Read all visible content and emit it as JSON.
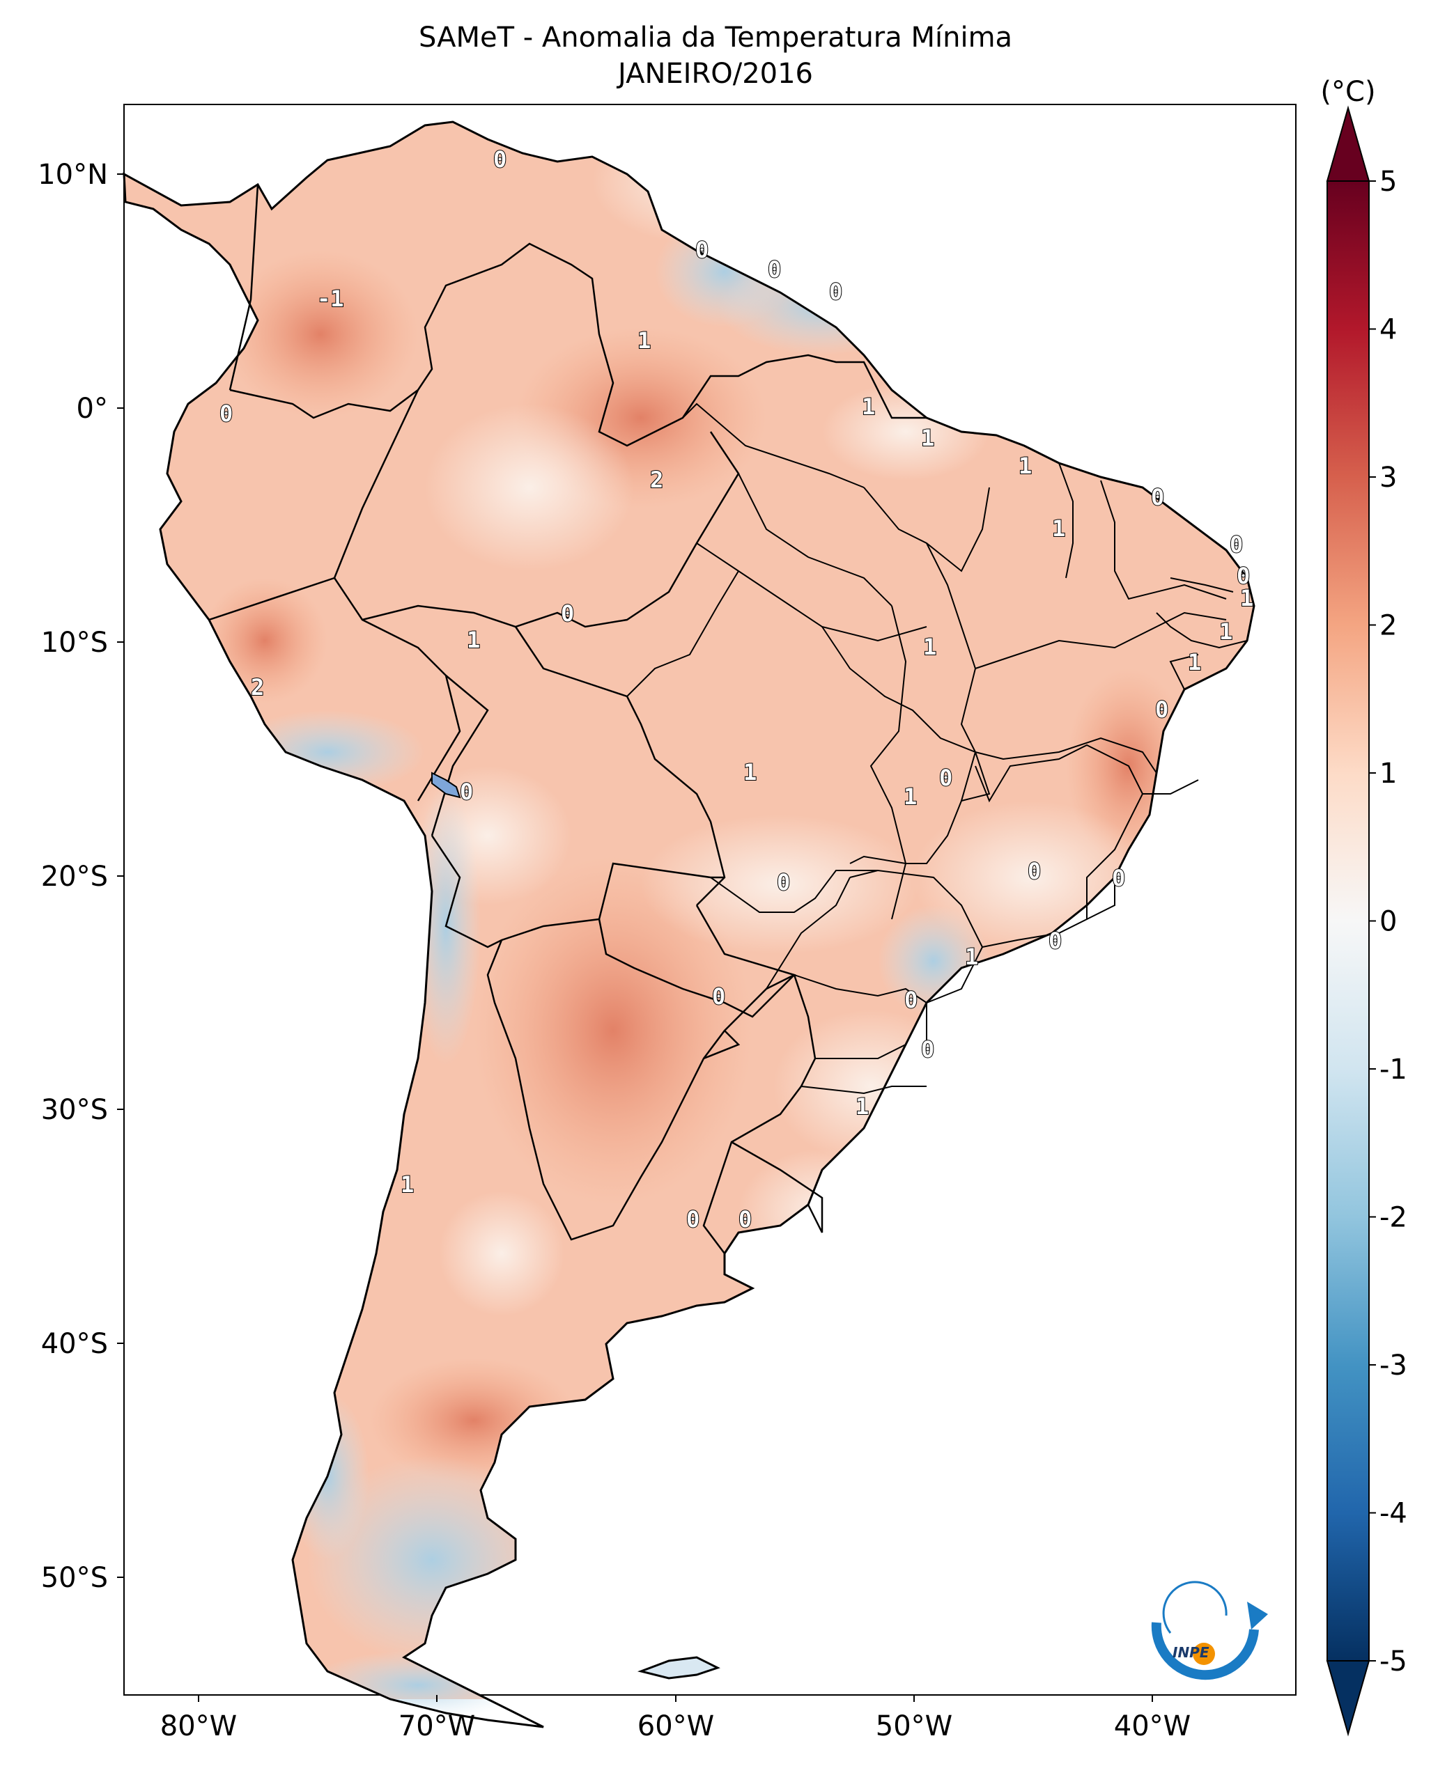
{
  "title": "SAMeT - Anomalia da Temperatura Mínima",
  "subtitle": "JANEIRO/2016",
  "colorbar": {
    "unit": "(°C)",
    "ticks": [
      "5",
      "4",
      "3",
      "2",
      "1",
      "0",
      "-1",
      "-2",
      "-3",
      "-4",
      "-5"
    ],
    "colors": [
      "#67001f",
      "#b2182b",
      "#d6604d",
      "#f4a582",
      "#fddbc7",
      "#f7f7f7",
      "#d1e5f0",
      "#92c5de",
      "#4393c3",
      "#2166ac",
      "#053061"
    ]
  },
  "axes": {
    "lat_labels": [
      "10°N",
      "0°",
      "10°S",
      "20°S",
      "30°S",
      "40°S",
      "50°S"
    ],
    "lon_labels": [
      "80°W",
      "70°W",
      "60°W",
      "50°W",
      "40°W"
    ]
  },
  "contour_labels": [
    "0",
    "0",
    "0",
    "0",
    "-1",
    "1",
    "0",
    "1",
    "1",
    "2",
    "1",
    "0",
    "1",
    "0",
    "0",
    "1",
    "0",
    "1",
    "1",
    "2",
    "1",
    "1",
    "1",
    "0",
    "1",
    "0",
    "0",
    "0",
    "0",
    "0",
    "0",
    "1",
    "0",
    "0",
    "0",
    "1",
    "1",
    "0"
  ],
  "logo": {
    "text": "INPE"
  }
}
